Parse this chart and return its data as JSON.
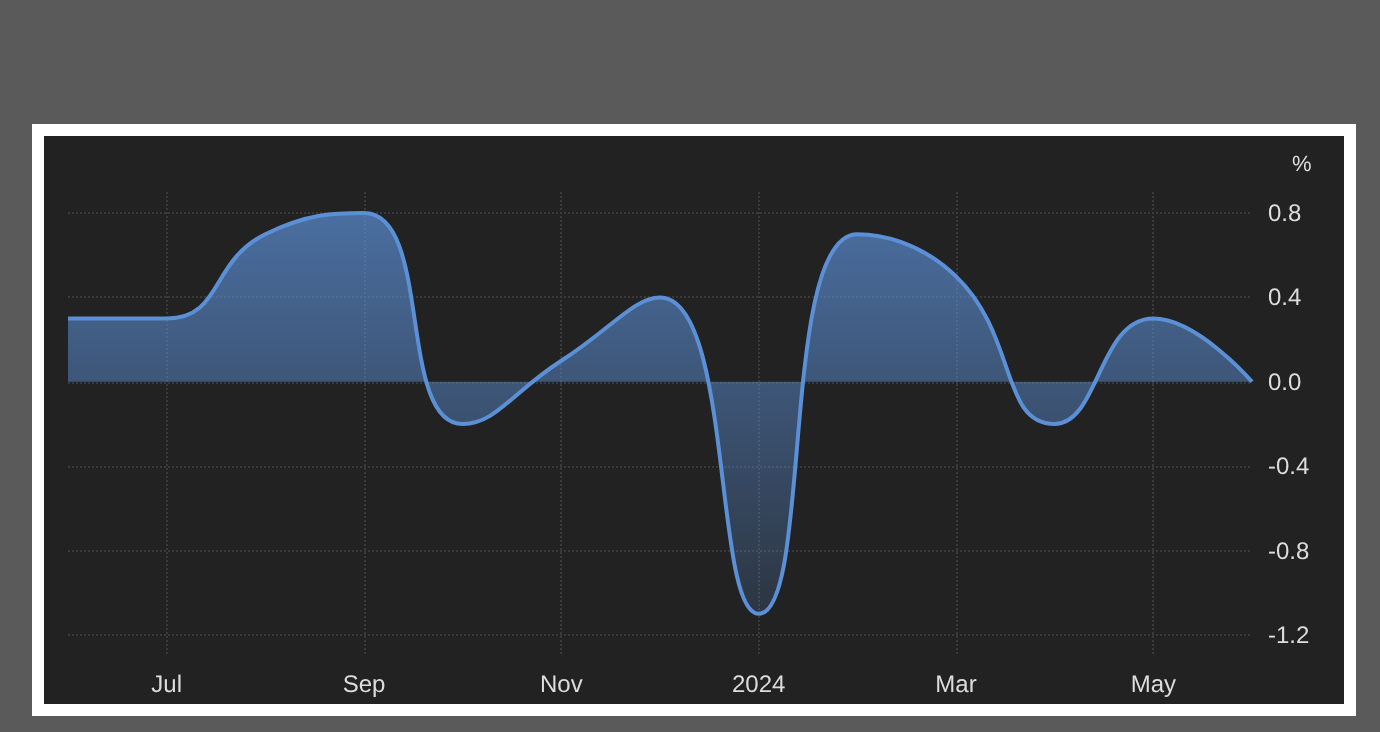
{
  "chart_data": {
    "type": "area",
    "ylabel": "%",
    "categories": [
      null,
      "Jul",
      null,
      "Sep",
      null,
      "Nov",
      null,
      "2024",
      null,
      "Mar",
      null,
      "May",
      null
    ],
    "series": [
      {
        "color": "#5b8fd6",
        "values": [
          0.3,
          0.3,
          0.7,
          0.8,
          -0.2,
          0.1,
          0.4,
          -1.1,
          0.7,
          0.5,
          -0.2,
          0.3,
          0.0
        ]
      }
    ],
    "ylim": [
      -1.3,
      0.9
    ],
    "yticks": [
      {
        "value": 0.8,
        "label": "0.8"
      },
      {
        "value": 0.4,
        "label": "0.4"
      },
      {
        "value": 0,
        "label": "0.0"
      },
      {
        "value": -0.4,
        "label": "-0.4"
      },
      {
        "value": -0.8,
        "label": "-0.8"
      },
      {
        "value": -1.2,
        "label": "-1.2"
      }
    ],
    "grid": true,
    "marker": "none"
  }
}
